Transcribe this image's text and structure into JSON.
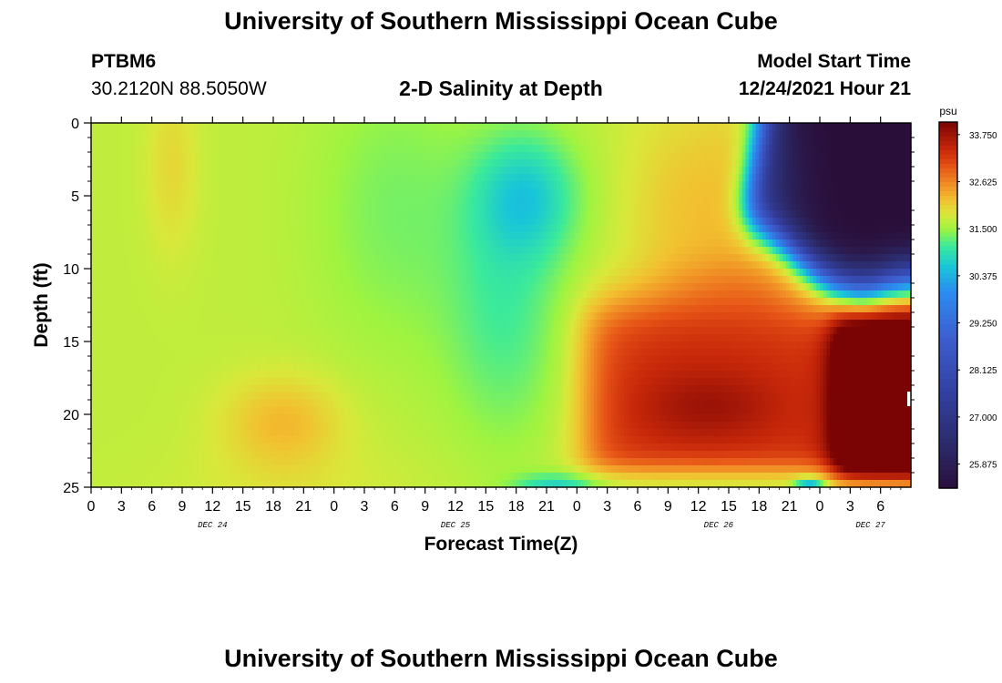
{
  "header": {
    "title": "University of Southern Mississippi Ocean Cube",
    "station_id": "PTBM6",
    "station_coords": "30.2120N  88.5050W",
    "subtitle": "2-D Salinity at Depth",
    "model_start_label": "Model Start Time",
    "model_start_value": "12/24/2021 Hour 21"
  },
  "footer": {
    "title": "University of Southern Mississippi Ocean Cube"
  },
  "chart_data": {
    "type": "heatmap",
    "title": "2-D Salinity at Depth",
    "xlabel": "Forecast Time(Z)",
    "ylabel": "Depth (ft)",
    "x_range_hours": [
      0,
      81
    ],
    "x_tick_labels": [
      "0",
      "3",
      "6",
      "9",
      "12",
      "15",
      "18",
      "21",
      "0",
      "3",
      "6",
      "9",
      "12",
      "15",
      "18",
      "21",
      "0",
      "3",
      "6",
      "9",
      "12",
      "15",
      "18",
      "21",
      "0",
      "3",
      "6"
    ],
    "day_labels": [
      {
        "label": "DEC 24",
        "hour": 12
      },
      {
        "label": "DEC 25",
        "hour": 36
      },
      {
        "label": "DEC 26",
        "hour": 62
      },
      {
        "label": "DEC 27",
        "hour": 77
      }
    ],
    "y_range_ft": [
      0,
      25
    ],
    "y_tick_labels": [
      "0",
      "5",
      "10",
      "15",
      "20",
      "25"
    ],
    "colorbar": {
      "unit": "psu",
      "min": 25.3,
      "max": 34.05,
      "tick_labels": [
        "33.750",
        "32.625",
        "31.500",
        "30.375",
        "29.250",
        "28.125",
        "27.000",
        "25.875"
      ],
      "tick_values": [
        33.75,
        32.625,
        31.5,
        30.375,
        29.25,
        28.125,
        27.0,
        25.875
      ],
      "colors": [
        {
          "v": 25.3,
          "c": "#2a0f3a"
        },
        {
          "v": 26.4,
          "c": "#2c2c6e"
        },
        {
          "v": 27.6,
          "c": "#3340a0"
        },
        {
          "v": 28.9,
          "c": "#3d5ecf"
        },
        {
          "v": 30.0,
          "c": "#2b8cf0"
        },
        {
          "v": 30.6,
          "c": "#18c6d8"
        },
        {
          "v": 31.1,
          "c": "#3bea9a"
        },
        {
          "v": 31.5,
          "c": "#9ef440"
        },
        {
          "v": 31.85,
          "c": "#d9e83a"
        },
        {
          "v": 32.2,
          "c": "#f2c030"
        },
        {
          "v": 32.6,
          "c": "#f08a24"
        },
        {
          "v": 33.0,
          "c": "#e65316"
        },
        {
          "v": 33.4,
          "c": "#c8280a"
        },
        {
          "v": 34.05,
          "c": "#7a0404"
        }
      ]
    },
    "salinity_features": {
      "background_psu": 31.7,
      "features": [
        {
          "name": "early-orange-streak",
          "t_hr": 8,
          "d_ft": 3,
          "psu_delta": 0.3
        },
        {
          "name": "orange-lens-dec24",
          "t_hr": 19,
          "d_ft": 20.5,
          "psu_delta": 0.55
        },
        {
          "name": "cyan-lens-dec25",
          "t_hr": 43,
          "d_ft": 5,
          "psu_delta": -0.9
        },
        {
          "name": "orange-band-dec25-26",
          "t_hr": 61,
          "d_ft": 4,
          "psu_delta": 0.5
        },
        {
          "name": "red-lower-layer-dec26",
          "t_hr": 62,
          "d_ft": 20,
          "psu_delta": 1.6
        },
        {
          "name": "dark-red-core-dec27",
          "t_hr": 79,
          "d_ft": 18,
          "psu_delta": 2.1
        },
        {
          "name": "fresh-surface-plume",
          "t_hr": 76,
          "d_ft": 4,
          "psu_delta": -6.5
        },
        {
          "name": "bottom-cyan-streak",
          "t_hr": 46,
          "d_ft": 25,
          "psu_delta": -0.9
        }
      ]
    }
  }
}
